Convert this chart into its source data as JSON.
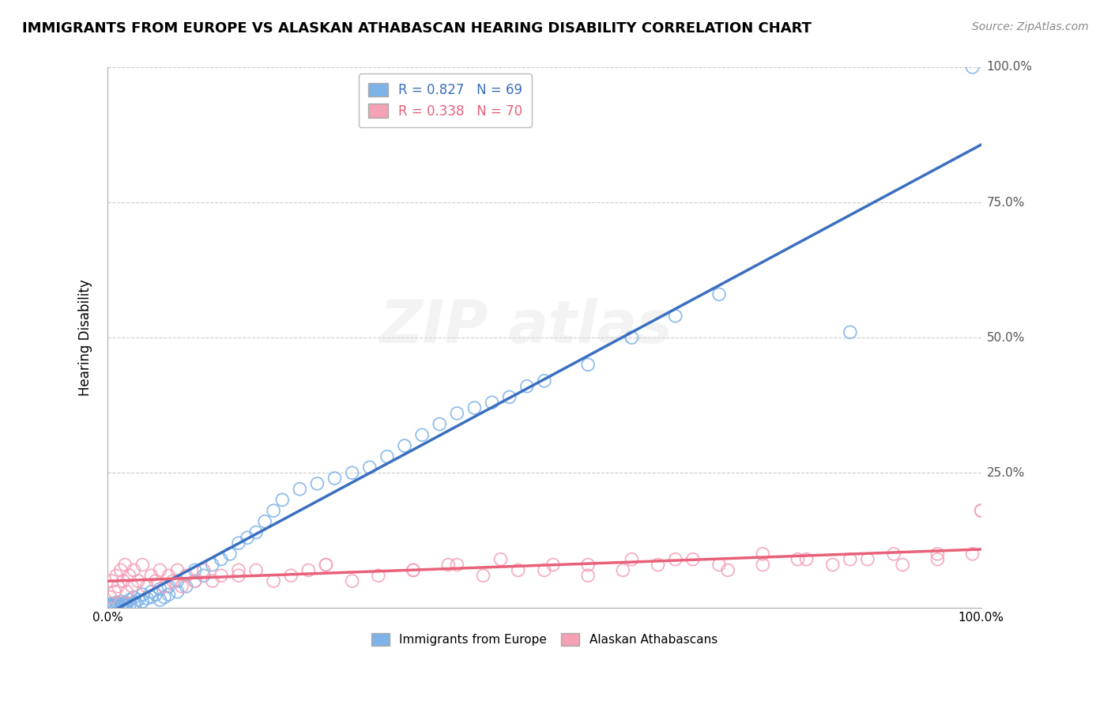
{
  "title": "IMMIGRANTS FROM EUROPE VS ALASKAN ATHABASCAN HEARING DISABILITY CORRELATION CHART",
  "source": "Source: ZipAtlas.com",
  "ylabel": "Hearing Disability",
  "legend_r1": "R = 0.827",
  "legend_n1": "N = 69",
  "legend_r2": "R = 0.338",
  "legend_n2": "N = 70",
  "blue_color": "#7EB3E8",
  "pink_color": "#F4A0B5",
  "blue_line_color": "#3A6FBF",
  "pink_line_color": "#E8607A",
  "blue_scatter_x": [
    0.2,
    0.3,
    0.5,
    0.5,
    0.7,
    0.8,
    1.0,
    1.0,
    1.2,
    1.3,
    1.5,
    1.5,
    1.7,
    2.0,
    2.0,
    2.2,
    2.5,
    2.5,
    3.0,
    3.0,
    3.2,
    3.5,
    4.0,
    4.0,
    4.5,
    5.0,
    5.0,
    5.5,
    6.0,
    6.0,
    6.5,
    7.0,
    7.0,
    8.0,
    8.0,
    9.0,
    10.0,
    10.0,
    11.0,
    12.0,
    13.0,
    14.0,
    15.0,
    16.0,
    17.0,
    18.0,
    19.0,
    20.0,
    22.0,
    24.0,
    26.0,
    28.0,
    30.0,
    32.0,
    34.0,
    36.0,
    38.0,
    40.0,
    42.0,
    44.0,
    46.0,
    48.0,
    50.0,
    55.0,
    60.0,
    65.0,
    70.0,
    85.0,
    99.0
  ],
  "blue_scatter_y": [
    0.3,
    0.5,
    0.2,
    0.8,
    0.4,
    0.6,
    0.3,
    1.0,
    0.5,
    0.8,
    0.4,
    1.2,
    0.6,
    0.5,
    1.0,
    0.8,
    0.6,
    1.5,
    0.8,
    2.0,
    1.0,
    1.5,
    1.2,
    2.5,
    1.8,
    2.0,
    3.0,
    2.5,
    1.5,
    3.5,
    2.0,
    2.5,
    4.0,
    3.0,
    5.0,
    4.0,
    5.0,
    7.0,
    6.0,
    8.0,
    9.0,
    10.0,
    12.0,
    13.0,
    14.0,
    16.0,
    18.0,
    20.0,
    22.0,
    23.0,
    24.0,
    25.0,
    26.0,
    28.0,
    30.0,
    32.0,
    34.0,
    36.0,
    37.0,
    38.0,
    39.0,
    41.0,
    42.0,
    45.0,
    50.0,
    54.0,
    58.0,
    51.0,
    100.0
  ],
  "pink_scatter_x": [
    0.3,
    0.5,
    0.8,
    1.0,
    1.2,
    1.5,
    1.8,
    2.0,
    2.2,
    2.5,
    2.8,
    3.0,
    3.5,
    4.0,
    4.5,
    5.0,
    5.5,
    6.0,
    6.5,
    7.0,
    7.5,
    8.0,
    8.5,
    9.0,
    10.0,
    11.0,
    12.0,
    13.0,
    15.0,
    17.0,
    19.0,
    21.0,
    23.0,
    25.0,
    28.0,
    31.0,
    35.0,
    39.0,
    43.0,
    47.0,
    51.0,
    55.0,
    59.0,
    63.0,
    67.0,
    71.0,
    75.0,
    79.0,
    83.0,
    87.0,
    91.0,
    95.0,
    99.0,
    40.0,
    50.0,
    60.0,
    70.0,
    80.0,
    90.0,
    100.0,
    15.0,
    25.0,
    35.0,
    45.0,
    55.0,
    65.0,
    75.0,
    85.0,
    95.0,
    100.0
  ],
  "pink_scatter_y": [
    2.0,
    5.0,
    3.0,
    6.0,
    4.0,
    7.0,
    5.0,
    8.0,
    3.0,
    6.0,
    4.0,
    7.0,
    5.0,
    8.0,
    4.0,
    6.0,
    5.0,
    7.0,
    4.0,
    6.0,
    5.0,
    7.0,
    4.0,
    6.0,
    5.0,
    7.0,
    5.0,
    6.0,
    6.0,
    7.0,
    5.0,
    6.0,
    7.0,
    8.0,
    5.0,
    6.0,
    7.0,
    8.0,
    6.0,
    7.0,
    8.0,
    6.0,
    7.0,
    8.0,
    9.0,
    7.0,
    8.0,
    9.0,
    8.0,
    9.0,
    8.0,
    9.0,
    10.0,
    8.0,
    7.0,
    9.0,
    8.0,
    9.0,
    10.0,
    18.0,
    7.0,
    8.0,
    7.0,
    9.0,
    8.0,
    9.0,
    10.0,
    9.0,
    10.0,
    18.0
  ]
}
